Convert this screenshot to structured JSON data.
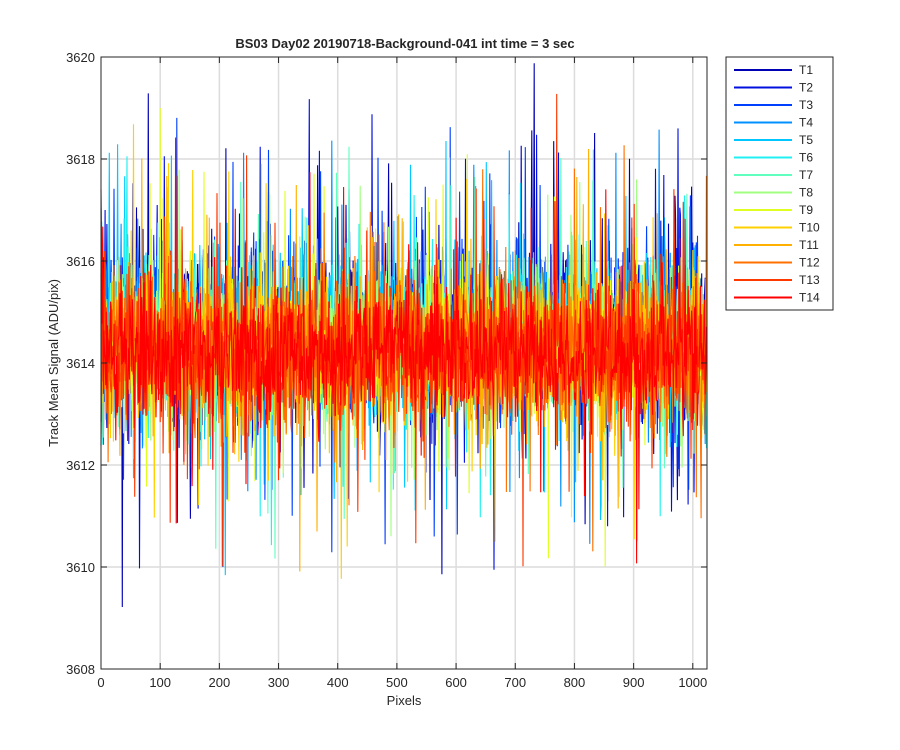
{
  "chart_data": {
    "type": "line",
    "title": "BS03 Day02 20190718-Background-041 int time = 3 sec",
    "xlabel": "Pixels",
    "ylabel": "Track Mean Signal (ADU/pix)",
    "xlim": [
      0,
      1024
    ],
    "ylim": [
      3608,
      3620
    ],
    "xticks": [
      0,
      100,
      200,
      300,
      400,
      500,
      600,
      700,
      800,
      900,
      1000
    ],
    "yticks": [
      3608,
      3610,
      3612,
      3614,
      3616,
      3618,
      3620
    ],
    "grid": true,
    "legend_position": "outside-top-right",
    "noise_model": {
      "n_points": 1024,
      "center": 3614.3,
      "note_values_estimated": "Each series is dense pixel-to-pixel noise around the center; per-series spread and offset read from the plot."
    },
    "series": [
      {
        "name": "T1",
        "color": "#0000b4",
        "mean": 3614.6,
        "spread": 1.35
      },
      {
        "name": "T2",
        "color": "#0010e0",
        "mean": 3614.6,
        "spread": 1.3
      },
      {
        "name": "T3",
        "color": "#0040ff",
        "mean": 3614.5,
        "spread": 1.25
      },
      {
        "name": "T4",
        "color": "#0090ff",
        "mean": 3614.5,
        "spread": 1.2
      },
      {
        "name": "T5",
        "color": "#00c8ff",
        "mean": 3614.5,
        "spread": 1.2
      },
      {
        "name": "T6",
        "color": "#20f0f0",
        "mean": 3614.4,
        "spread": 1.15
      },
      {
        "name": "T7",
        "color": "#60ffc0",
        "mean": 3614.4,
        "spread": 1.15
      },
      {
        "name": "T8",
        "color": "#a0ff80",
        "mean": 3614.3,
        "spread": 1.15
      },
      {
        "name": "T9",
        "color": "#e0ff20",
        "mean": 3614.3,
        "spread": 1.15
      },
      {
        "name": "T10",
        "color": "#ffd000",
        "mean": 3614.3,
        "spread": 1.15
      },
      {
        "name": "T11",
        "color": "#ffb000",
        "mean": 3614.3,
        "spread": 1.15
      },
      {
        "name": "T12",
        "color": "#ff7000",
        "mean": 3614.2,
        "spread": 1.15
      },
      {
        "name": "T13",
        "color": "#ff3800",
        "mean": 3614.2,
        "spread": 1.15
      },
      {
        "name": "T14",
        "color": "#ff0000",
        "mean": 3614.2,
        "spread": 1.1
      }
    ]
  }
}
